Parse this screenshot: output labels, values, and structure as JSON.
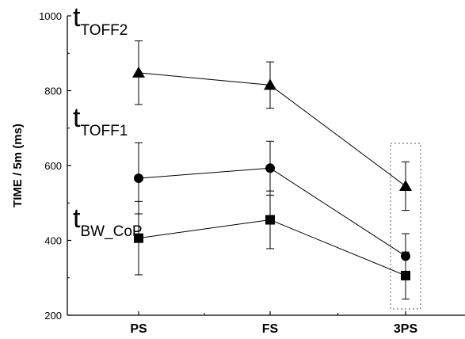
{
  "chart_data": {
    "type": "line",
    "ylabel": "TIME / 5m (ms)",
    "xlabel": "",
    "categories": [
      "PS",
      "FS",
      "3PS"
    ],
    "ylim": [
      200,
      1000
    ],
    "yticks": [
      200,
      400,
      600,
      800,
      1000
    ],
    "grid": false,
    "series": [
      {
        "name_main": "t",
        "name_sub": "TOFF2",
        "marker": "triangle",
        "values": [
          848,
          815,
          545
        ],
        "error": [
          85,
          62,
          65
        ]
      },
      {
        "name_main": "t",
        "name_sub": "TOFF1",
        "marker": "circle",
        "values": [
          566,
          593,
          358
        ],
        "error": [
          95,
          72,
          60
        ]
      },
      {
        "name_main": "t",
        "name_sub": "BW_CoP",
        "marker": "square",
        "values": [
          406,
          455,
          306
        ],
        "error": [
          98,
          77,
          63
        ]
      }
    ],
    "annotations": [
      {
        "type": "dashed-box",
        "category": "3PS"
      }
    ],
    "colors": {
      "line": "#000000",
      "marker": "#000000",
      "box": "#777777"
    }
  }
}
